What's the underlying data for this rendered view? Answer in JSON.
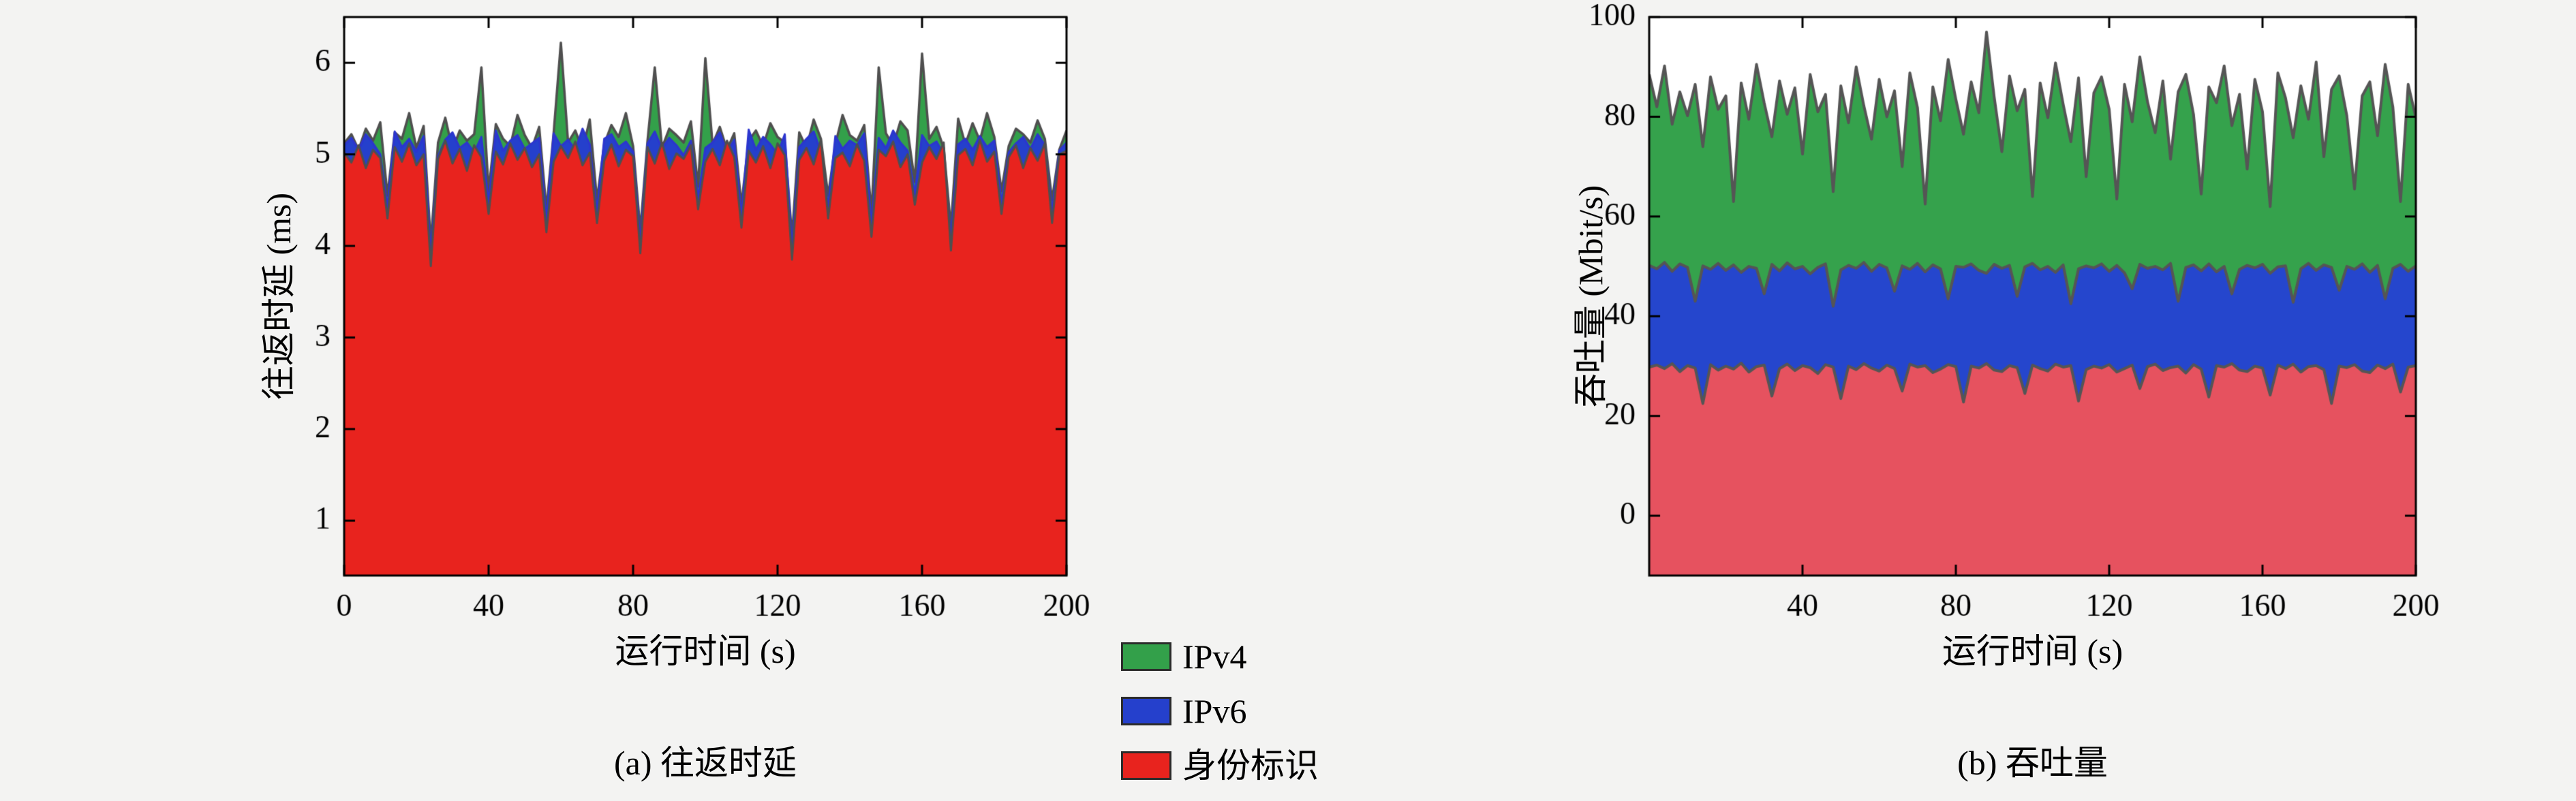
{
  "page": {
    "bg": "#f3f3f2",
    "plot_bg": "#ffffff",
    "axis_color": "#000000"
  },
  "legend": {
    "position": "bottom-center",
    "items": [
      {
        "label": "IPv4",
        "color": "#33a04a"
      },
      {
        "label": "IPv6",
        "color": "#2540cc"
      },
      {
        "label": "身份标识",
        "color": "#e8231e"
      }
    ]
  },
  "chart_data": [
    {
      "id": "rtt",
      "type": "area",
      "caption": "(a) 往返时延",
      "xlabel": "运行时间 (s)",
      "ylabel": "往返时延 (ms)",
      "xlim": [
        0,
        200
      ],
      "ylim": [
        0.4,
        6.5
      ],
      "xticks": [
        0,
        40,
        80,
        120,
        160,
        200
      ],
      "yticks": [
        1,
        2,
        3,
        4,
        5,
        6
      ],
      "grid": false,
      "x_step": 2,
      "series": [
        {
          "name": "IPv4",
          "fill": "#33a04a",
          "border": "#4f4f4f",
          "border_width": 3.5,
          "values": [
            5.12,
            5.22,
            5.05,
            5.28,
            5.15,
            5.35,
            4.55,
            5.24,
            5.17,
            5.45,
            5.07,
            5.31,
            4.03,
            5.13,
            5.4,
            5.05,
            5.26,
            5.15,
            5.22,
            5.95,
            4.6,
            5.33,
            5.17,
            5.09,
            5.43,
            5.21,
            5.07,
            5.3,
            4.4,
            5.23,
            6.22,
            5.13,
            5.26,
            5.05,
            5.38,
            4.5,
            5.11,
            5.32,
            5.19,
            5.45,
            5.09,
            4.17,
            5.15,
            5.95,
            5.07,
            5.28,
            5.21,
            5.13,
            5.36,
            4.65,
            6.05,
            5.11,
            5.3,
            5.05,
            5.23,
            4.45,
            5.15,
            5.26,
            5.09,
            5.34,
            5.19,
            5.13,
            4.1,
            5.24,
            5.07,
            5.38,
            5.17,
            4.55,
            5.11,
            5.43,
            5.21,
            5.15,
            5.32,
            4.35,
            5.95,
            5.23,
            5.09,
            5.36,
            5.26,
            4.7,
            6.1,
            5.17,
            5.3,
            5.07,
            4.2,
            5.39,
            5.11,
            5.34,
            5.15,
            5.45,
            5.19,
            4.6,
            5.09,
            5.28,
            5.22,
            5.13,
            5.37,
            5.17,
            4.5,
            5.05,
            5.26
          ]
        },
        {
          "name": "IPv6",
          "fill": "#2540cc",
          "border": "#2c35cf",
          "border_width": 3,
          "values": [
            5.1,
            5.18,
            5.05,
            5.22,
            5.12,
            5.0,
            4.42,
            5.25,
            5.08,
            5.17,
            5.03,
            5.2,
            3.9,
            4.98,
            5.16,
            5.24,
            5.07,
            5.13,
            5.02,
            5.19,
            4.47,
            5.26,
            5.04,
            5.15,
            5.21,
            5.06,
            5.12,
            5.18,
            4.27,
            5.23,
            5.09,
            5.16,
            5.05,
            5.28,
            5.11,
            4.37,
            5.17,
            5.22,
            5.08,
            5.14,
            5.03,
            4.04,
            5.12,
            5.25,
            5.06,
            5.18,
            5.1,
            4.99,
            5.15,
            4.52,
            5.07,
            5.13,
            5.24,
            5.02,
            5.16,
            4.32,
            5.27,
            5.05,
            5.19,
            5.11,
            5.0,
            5.22,
            3.97,
            5.08,
            5.17,
            5.25,
            5.03,
            4.42,
            5.2,
            5.06,
            5.15,
            5.1,
            5.23,
            4.22,
            5.18,
            5.07,
            5.26,
            5.13,
            5.04,
            4.57,
            5.21,
            5.09,
            5.14,
            5.0,
            4.07,
            5.11,
            5.17,
            5.05,
            5.2,
            5.08,
            5.15,
            4.47,
            5.02,
            5.12,
            5.19,
            5.06,
            5.22,
            5.1,
            4.37,
            5.04,
            5.13
          ]
        },
        {
          "name": "身份标识",
          "fill": "#e8231e",
          "border": "#4f4f4f",
          "border_width": 3,
          "values": [
            5.02,
            4.91,
            5.1,
            4.85,
            5.05,
            4.96,
            4.3,
            5.08,
            4.92,
            5.12,
            4.88,
            5.0,
            3.78,
            4.95,
            5.15,
            4.9,
            5.06,
            4.82,
            5.1,
            4.97,
            4.35,
            5.03,
            4.89,
            5.12,
            4.94,
            5.07,
            4.86,
            5.0,
            4.15,
            4.92,
            5.09,
            4.96,
            5.14,
            4.88,
            5.02,
            4.25,
            4.93,
            5.11,
            4.87,
            5.05,
            4.98,
            3.92,
            5.08,
            4.9,
            5.13,
            4.84,
            5.01,
            4.95,
            5.1,
            4.4,
            4.92,
            5.06,
            4.88,
            5.15,
            4.97,
            4.2,
            5.04,
            4.91,
            5.09,
            4.85,
            5.12,
            4.99,
            3.85,
            4.94,
            5.07,
            4.89,
            5.16,
            4.3,
            4.96,
            5.02,
            4.87,
            5.11,
            4.93,
            4.1,
            5.05,
            4.98,
            5.14,
            4.86,
            5.0,
            4.45,
            4.91,
            5.08,
            4.95,
            5.13,
            3.95,
            4.99,
            5.06,
            4.88,
            5.16,
            4.92,
            5.03,
            4.35,
            4.97,
            5.1,
            4.85,
            5.07,
            4.93,
            5.12,
            4.25,
            5.0,
            5.04
          ]
        }
      ]
    },
    {
      "id": "thr",
      "type": "area",
      "caption": "(b) 吞吐量",
      "xlabel": "运行时间 (s)",
      "ylabel": "吞吐量 (Mbit/s)",
      "xlim": [
        0,
        200
      ],
      "ylim": [
        -12,
        100
      ],
      "xticks": [
        40,
        80,
        120,
        160,
        200
      ],
      "yticks": [
        0,
        20,
        40,
        60,
        80,
        100
      ],
      "grid": false,
      "x_step": 2,
      "series": [
        {
          "name": "IPv4",
          "fill": "#35a24c",
          "border": "#555555",
          "border_width": 4,
          "values": [
            88.5,
            82.0,
            90.2,
            78.5,
            85.0,
            80.2,
            86.5,
            74.0,
            88.0,
            81.5,
            84.2,
            63.0,
            86.8,
            79.5,
            90.5,
            82.8,
            76.0,
            87.2,
            80.5,
            85.8,
            72.5,
            88.5,
            81.0,
            84.5,
            65.0,
            86.2,
            78.8,
            90.0,
            82.2,
            75.5,
            87.5,
            80.0,
            85.2,
            70.0,
            88.8,
            81.8,
            62.5,
            86.0,
            79.2,
            91.5,
            83.5,
            76.5,
            87.0,
            80.8,
            97.0,
            84.0,
            73.0,
            88.2,
            81.2,
            85.5,
            64.0,
            86.8,
            79.8,
            90.8,
            82.5,
            75.0,
            87.8,
            68.0,
            84.8,
            88.0,
            81.5,
            63.5,
            86.5,
            79.0,
            92.0,
            83.0,
            76.8,
            87.2,
            71.5,
            85.0,
            88.5,
            80.5,
            64.5,
            86.0,
            82.8,
            90.2,
            78.2,
            84.5,
            69.5,
            87.5,
            81.0,
            62.0,
            88.8,
            83.8,
            75.8,
            86.2,
            79.5,
            91.0,
            72.0,
            85.5,
            88.2,
            80.2,
            65.5,
            84.2,
            87.0,
            76.2,
            90.5,
            82.0,
            63.0,
            86.5,
            79.8
          ]
        },
        {
          "name": "IPv6",
          "fill": "#2546cd",
          "border": "#555555",
          "border_width": 4,
          "values": [
            50.2,
            49.5,
            50.8,
            49.0,
            50.5,
            49.8,
            43.0,
            50.1,
            49.4,
            50.6,
            49.2,
            50.3,
            48.8,
            50.0,
            49.6,
            44.5,
            50.4,
            49.1,
            50.7,
            49.5,
            50.0,
            48.5,
            49.8,
            50.5,
            42.0,
            49.3,
            50.2,
            49.6,
            50.8,
            49.0,
            50.4,
            49.7,
            45.0,
            50.1,
            49.4,
            50.6,
            48.9,
            50.3,
            49.5,
            43.5,
            50.0,
            49.8,
            50.5,
            49.2,
            48.6,
            50.4,
            49.6,
            50.2,
            44.0,
            49.9,
            50.6,
            49.3,
            50.0,
            48.8,
            50.3,
            42.5,
            49.5,
            50.1,
            49.7,
            50.5,
            49.0,
            50.2,
            48.7,
            45.5,
            50.4,
            49.6,
            50.0,
            49.3,
            50.6,
            43.0,
            49.8,
            50.3,
            49.1,
            50.5,
            48.9,
            50.0,
            44.5,
            49.4,
            50.2,
            49.7,
            50.4,
            48.6,
            49.9,
            50.1,
            42.8,
            49.5,
            50.6,
            49.2,
            50.3,
            49.8,
            45.2,
            50.0,
            49.4,
            50.5,
            48.8,
            50.2,
            43.5,
            49.6,
            50.4,
            49.0,
            50.1
          ]
        },
        {
          "name": "身份标识",
          "fill": "#e6525f",
          "border": "#555555",
          "border_width": 4,
          "values": [
            29.8,
            30.2,
            29.5,
            30.5,
            28.9,
            30.1,
            29.6,
            22.5,
            30.3,
            29.2,
            30.0,
            29.4,
            30.6,
            28.8,
            29.9,
            30.2,
            24.0,
            29.5,
            30.4,
            29.1,
            30.1,
            29.7,
            28.5,
            30.3,
            29.8,
            23.5,
            30.0,
            29.3,
            30.5,
            29.6,
            29.0,
            30.2,
            29.5,
            25.0,
            30.4,
            29.8,
            30.1,
            28.7,
            29.4,
            30.3,
            29.9,
            22.8,
            30.0,
            29.6,
            30.5,
            29.2,
            28.9,
            30.1,
            29.7,
            24.5,
            30.2,
            29.5,
            29.0,
            30.4,
            29.8,
            30.1,
            23.0,
            29.3,
            30.0,
            29.6,
            30.3,
            28.8,
            29.5,
            30.2,
            25.5,
            29.9,
            30.4,
            29.1,
            29.7,
            30.0,
            28.6,
            30.3,
            29.4,
            23.8,
            30.1,
            29.8,
            30.5,
            29.2,
            28.9,
            30.0,
            29.6,
            24.2,
            30.2,
            29.5,
            30.4,
            28.8,
            29.9,
            30.1,
            29.3,
            22.5,
            30.0,
            29.7,
            30.3,
            29.0,
            28.7,
            30.2,
            29.5,
            30.4,
            24.8,
            29.8,
            30.1
          ]
        }
      ]
    }
  ]
}
